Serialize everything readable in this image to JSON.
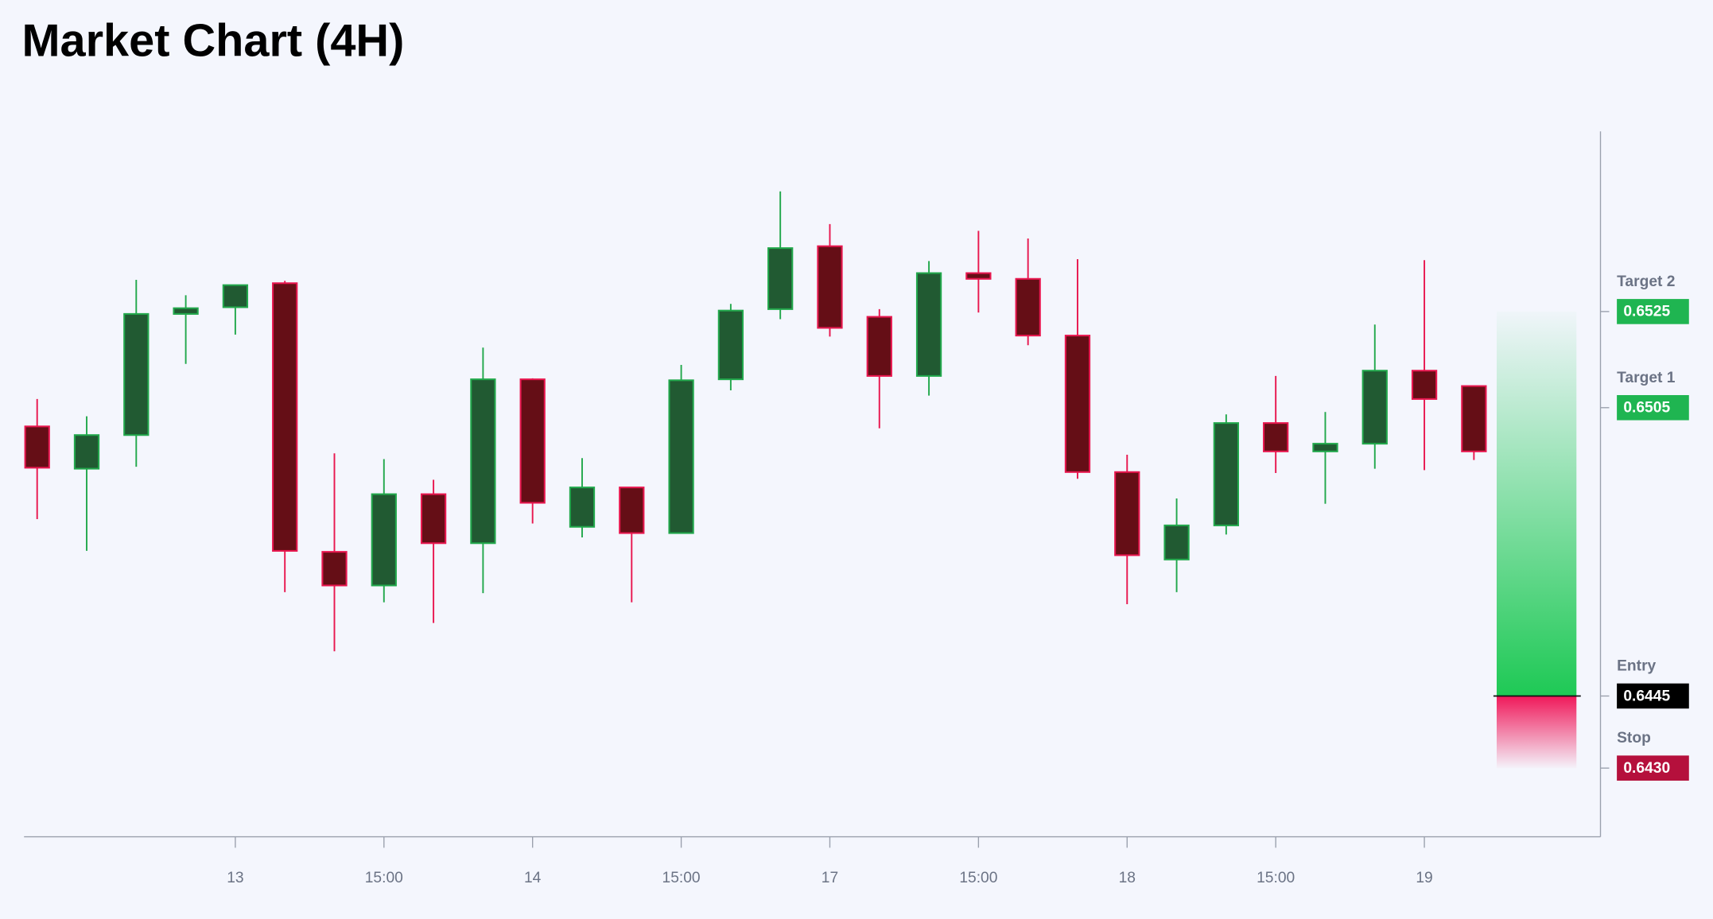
{
  "chart_data": {
    "type": "candlestick",
    "title": "Market Chart (4H)",
    "categories": [
      null,
      null,
      null,
      null,
      "13",
      null,
      null,
      "15:00",
      null,
      null,
      "14",
      null,
      null,
      "15:00",
      null,
      null,
      "17",
      null,
      null,
      "15:00",
      null,
      null,
      "18",
      null,
      null,
      "15:00",
      null,
      null,
      "19",
      null
    ],
    "open": [
      0.65011,
      0.64923,
      0.64993,
      0.65245,
      0.65259,
      0.65309,
      0.6475,
      0.6468,
      0.6487,
      0.64768,
      0.65109,
      0.64802,
      0.64884,
      0.64789,
      0.65109,
      0.65255,
      0.65386,
      0.65239,
      0.65116,
      0.6533,
      0.65318,
      0.652,
      0.64916,
      0.64734,
      0.64805,
      0.65018,
      0.64959,
      0.64975,
      0.65127,
      0.65095
    ],
    "high": [
      0.65068,
      0.65032,
      0.65316,
      0.65284,
      0.65305,
      0.65314,
      0.64955,
      0.64943,
      0.649,
      0.65175,
      0.65111,
      0.64945,
      0.64884,
      0.65139,
      0.65266,
      0.655,
      0.65432,
      0.65255,
      0.65355,
      0.65418,
      0.65402,
      0.65359,
      0.64952,
      0.64861,
      0.65036,
      0.65116,
      0.65041,
      0.65223,
      0.65357,
      0.65095
    ],
    "low": [
      0.64818,
      0.64752,
      0.64927,
      0.65141,
      0.65202,
      0.64666,
      0.64543,
      0.64645,
      0.64602,
      0.64664,
      0.64809,
      0.6478,
      0.64645,
      0.64789,
      0.65086,
      0.65234,
      0.65198,
      0.65007,
      0.65075,
      0.65248,
      0.6518,
      0.64902,
      0.64641,
      0.64666,
      0.64786,
      0.64914,
      0.6485,
      0.64923,
      0.6492,
      0.64941
    ],
    "close": [
      0.64925,
      0.64993,
      0.65245,
      0.65257,
      0.65305,
      0.64752,
      0.6468,
      0.6487,
      0.64768,
      0.65109,
      0.64852,
      0.64884,
      0.64789,
      0.65107,
      0.65252,
      0.65382,
      0.65216,
      0.65116,
      0.6533,
      0.65318,
      0.652,
      0.64916,
      0.64743,
      0.64805,
      0.65018,
      0.64959,
      0.64975,
      0.65127,
      0.65068,
      0.64959
    ],
    "up_color": "#215a32",
    "up_border": "#22a84c",
    "down_color": "#650e16",
    "down_border": "#e8174f",
    "ylim": [
      0.64157,
      0.65625
    ],
    "levels": [
      {
        "name": "Target 2",
        "value": 0.6525,
        "label": "0.6525",
        "color": "#1fb551"
      },
      {
        "name": "Target 1",
        "value": 0.6505,
        "label": "0.6505",
        "color": "#1fb551"
      },
      {
        "name": "Entry",
        "value": 0.6445,
        "label": "0.6445",
        "color": "#000000"
      },
      {
        "name": "Stop",
        "value": 0.643,
        "label": "0.6430",
        "color": "#b5103c"
      }
    ],
    "profit_color": "#1ec955",
    "loss_color": "#f0195a"
  }
}
